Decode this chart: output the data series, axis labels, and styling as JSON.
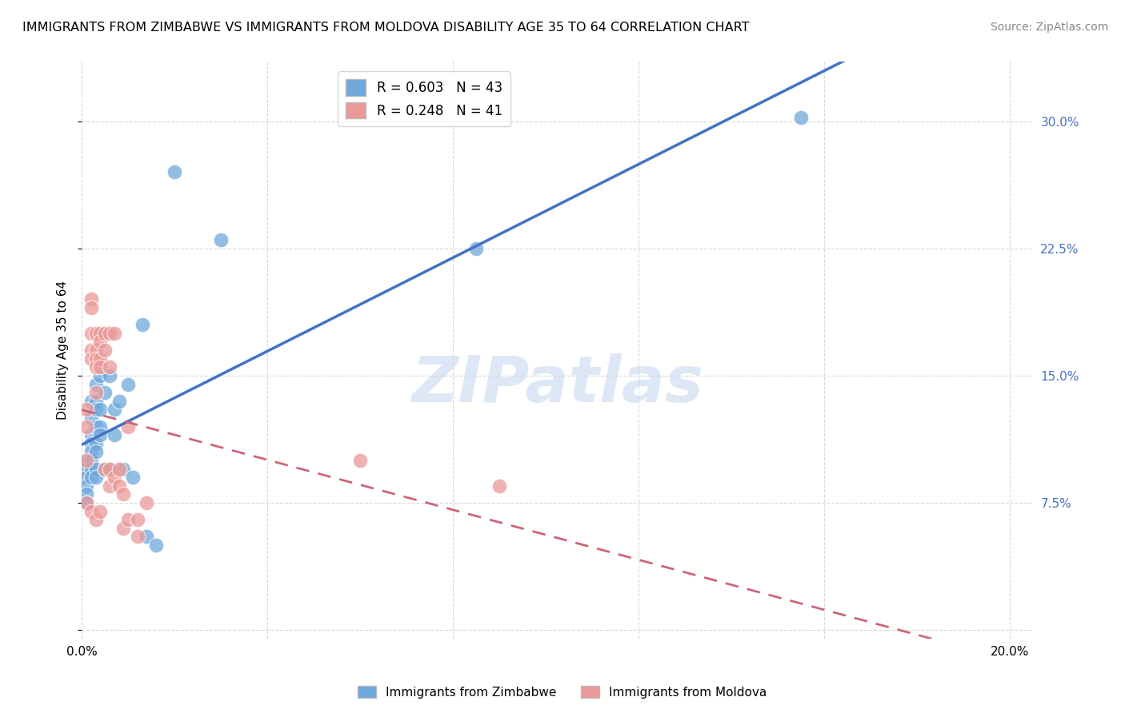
{
  "title": "IMMIGRANTS FROM ZIMBABWE VS IMMIGRANTS FROM MOLDOVA DISABILITY AGE 35 TO 64 CORRELATION CHART",
  "source": "Source: ZipAtlas.com",
  "ylabel": "Disability Age 35 to 64",
  "xlim": [
    0.0,
    0.205
  ],
  "ylim": [
    -0.005,
    0.335
  ],
  "r_zimbabwe": 0.603,
  "n_zimbabwe": 43,
  "r_moldova": 0.248,
  "n_moldova": 41,
  "color_zimbabwe": "#6fa8dc",
  "color_moldova": "#ea9999",
  "line_color_zimbabwe": "#4472c4",
  "line_color_moldova": "#cc6677",
  "background_color": "#ffffff",
  "grid_color": "#d9d9d9",
  "watermark_text": "ZIPatlas",
  "watermark_color": "#c8d8f0",
  "zimbabwe_x": [
    0.001,
    0.001,
    0.001,
    0.001,
    0.001,
    0.001,
    0.002,
    0.002,
    0.002,
    0.002,
    0.002,
    0.002,
    0.002,
    0.002,
    0.003,
    0.003,
    0.003,
    0.003,
    0.003,
    0.003,
    0.003,
    0.003,
    0.004,
    0.004,
    0.004,
    0.004,
    0.005,
    0.005,
    0.006,
    0.006,
    0.007,
    0.007,
    0.008,
    0.009,
    0.01,
    0.011,
    0.013,
    0.014,
    0.016,
    0.02,
    0.03,
    0.085,
    0.155
  ],
  "zimbabwe_y": [
    0.1,
    0.095,
    0.09,
    0.085,
    0.08,
    0.075,
    0.135,
    0.125,
    0.115,
    0.11,
    0.105,
    0.1,
    0.095,
    0.09,
    0.145,
    0.135,
    0.13,
    0.12,
    0.11,
    0.105,
    0.095,
    0.09,
    0.15,
    0.13,
    0.12,
    0.115,
    0.14,
    0.095,
    0.15,
    0.095,
    0.13,
    0.115,
    0.135,
    0.095,
    0.145,
    0.09,
    0.18,
    0.055,
    0.05,
    0.27,
    0.23,
    0.225,
    0.302
  ],
  "moldova_x": [
    0.001,
    0.001,
    0.001,
    0.001,
    0.002,
    0.002,
    0.002,
    0.002,
    0.002,
    0.002,
    0.003,
    0.003,
    0.003,
    0.003,
    0.003,
    0.003,
    0.004,
    0.004,
    0.004,
    0.004,
    0.004,
    0.005,
    0.005,
    0.005,
    0.006,
    0.006,
    0.006,
    0.006,
    0.007,
    0.007,
    0.008,
    0.008,
    0.009,
    0.009,
    0.01,
    0.01,
    0.012,
    0.012,
    0.014,
    0.06,
    0.09
  ],
  "moldova_y": [
    0.13,
    0.12,
    0.1,
    0.075,
    0.195,
    0.19,
    0.175,
    0.165,
    0.16,
    0.07,
    0.175,
    0.165,
    0.16,
    0.155,
    0.14,
    0.065,
    0.175,
    0.17,
    0.16,
    0.155,
    0.07,
    0.175,
    0.165,
    0.095,
    0.175,
    0.155,
    0.095,
    0.085,
    0.175,
    0.09,
    0.095,
    0.085,
    0.08,
    0.06,
    0.12,
    0.065,
    0.065,
    0.055,
    0.075,
    0.1,
    0.085
  ]
}
